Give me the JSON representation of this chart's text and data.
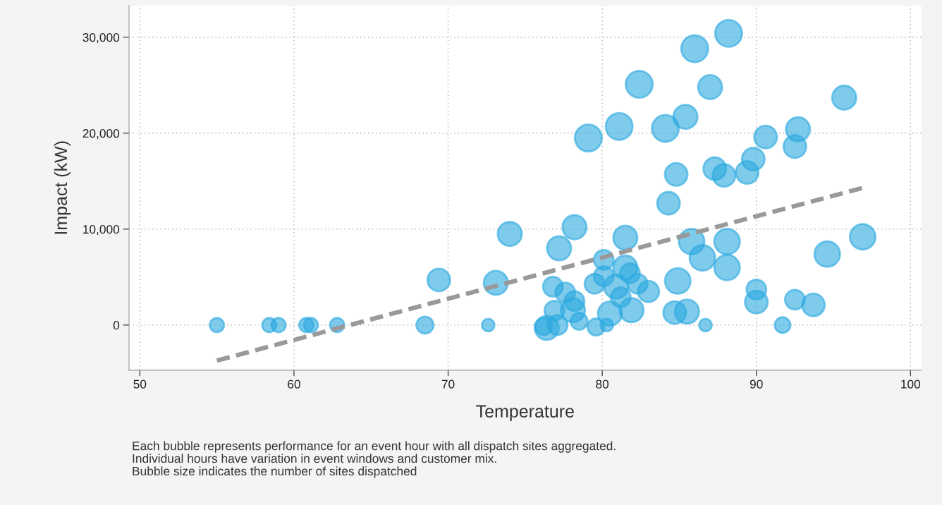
{
  "chart_data": {
    "type": "bubble",
    "xlabel": "Temperature",
    "ylabel": "Impact (kW)",
    "xlim": [
      49.3,
      100.7
    ],
    "ylim": [
      -4700,
      33300
    ],
    "xticks": [
      50,
      60,
      70,
      80,
      90,
      100
    ],
    "yticks": [
      {
        "value": 0,
        "label": "0"
      },
      {
        "value": 10000,
        "label": "10,000"
      },
      {
        "value": 20000,
        "label": "20,000"
      },
      {
        "value": 30000,
        "label": "30,000"
      }
    ],
    "grid": true,
    "series": [
      {
        "color": "#29a8e0",
        "x": [
          55.0,
          58.4,
          59.0,
          60.8,
          61.1,
          62.8,
          68.5,
          69.4,
          72.6,
          73.1,
          74.0,
          78.2,
          77.2,
          76.8,
          77.6,
          78.2,
          76.9,
          78.1,
          76.4,
          76.2,
          77.1,
          78.5,
          79.6,
          80.3,
          79.5,
          80.1,
          80.1,
          81.5,
          81.8,
          80.9,
          81.2,
          80.5,
          81.9,
          82.3,
          83.0,
          81.5,
          84.3,
          84.9,
          84.7,
          85.5,
          86.7,
          85.8,
          86.5,
          88.1,
          88.1,
          90.0,
          90.0,
          91.7,
          92.5,
          93.7,
          94.6,
          96.9,
          79.1,
          81.1,
          82.4,
          84.1,
          85.4,
          86.0,
          88.2,
          87.0,
          84.8,
          87.3,
          87.9,
          89.4,
          89.8,
          90.6,
          92.7,
          92.5,
          95.7
        ],
        "values": [
          0,
          0,
          0,
          0,
          0,
          0,
          0,
          4700,
          0,
          4400,
          9500,
          10200,
          8000,
          4000,
          3400,
          2500,
          1500,
          1550,
          -300,
          -150,
          0,
          400,
          -200,
          0,
          4300,
          6800,
          5100,
          6000,
          5400,
          4000,
          2900,
          1200,
          1550,
          4300,
          3500,
          9100,
          12700,
          4600,
          1300,
          1400,
          0,
          8700,
          7000,
          8700,
          6000,
          3700,
          2400,
          0,
          2650,
          2100,
          7400,
          9200,
          19500,
          20700,
          25100,
          20500,
          21700,
          28800,
          30400,
          24800,
          15700,
          16300,
          15600,
          15900,
          17300,
          19600,
          20400,
          18600,
          23700
        ],
        "sizes": [
          0.28,
          0.28,
          0.28,
          0.28,
          0.28,
          0.28,
          0.4,
          0.71,
          0.22,
          0.8,
          0.8,
          0.8,
          0.8,
          0.54,
          0.54,
          0.54,
          0.54,
          0.8,
          0.8,
          0.4,
          0.54,
          0.4,
          0.4,
          0.22,
          0.54,
          0.54,
          0.54,
          0.8,
          0.54,
          0.8,
          0.54,
          0.8,
          0.8,
          0.54,
          0.62,
          0.8,
          0.71,
          0.9,
          0.71,
          0.8,
          0.22,
          0.9,
          0.9,
          0.9,
          0.9,
          0.54,
          0.71,
          0.34,
          0.54,
          0.71,
          0.9,
          0.9,
          1,
          1,
          1,
          1,
          0.8,
          1,
          1,
          0.8,
          0.71,
          0.71,
          0.71,
          0.71,
          0.71,
          0.71,
          0.8,
          0.71,
          0.8
        ]
      },
      {
        "type": "line",
        "color": "#999999",
        "line_style": "dashed",
        "x": [
          55.0,
          96.9
        ],
        "values": [
          -3700,
          14300
        ]
      }
    ],
    "annotations": [
      "Each bubble represents performance for an event hour with all dispatch sites aggregated.",
      "Individual hours have variation in event windows and customer mix.",
      "Bubble size indicates the number of sites dispatched"
    ]
  }
}
